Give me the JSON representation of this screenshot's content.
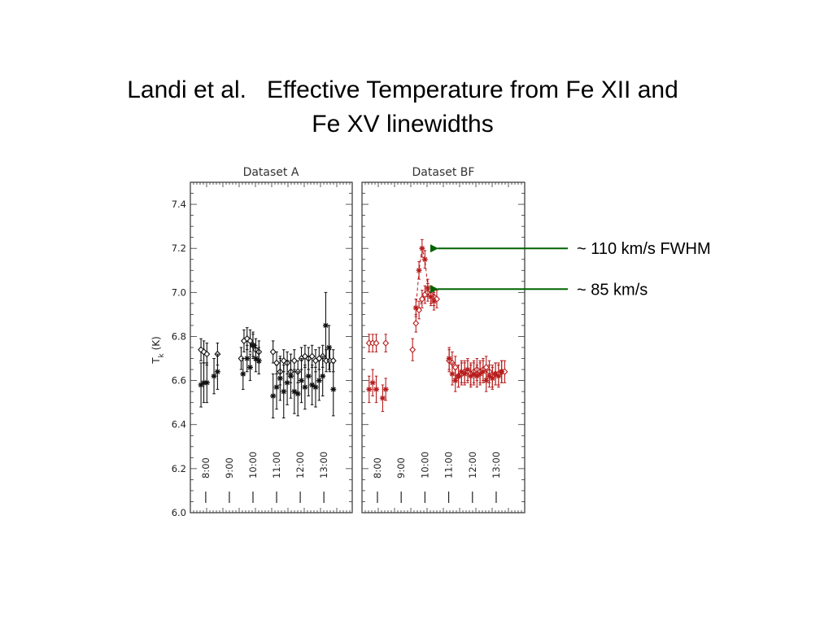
{
  "slide": {
    "title_line1": "Landi et al.   Effective Temperature from Fe XII and",
    "title_line2": "Fe XV linewidths"
  },
  "colors": {
    "series_A": "#111111",
    "series_BF": "#b81c1c",
    "arrow": "#006400",
    "frame": "#333333"
  },
  "chart_data": [
    {
      "type": "scatter",
      "title": "Dataset A",
      "ylabel_main": "T",
      "ylabel_sub": "k",
      "ylabel_unit": " (K)",
      "ylim": [
        6.0,
        7.5
      ],
      "xlim": [
        7.35,
        14.2
      ],
      "yticks": [
        6.0,
        6.2,
        6.4,
        6.6,
        6.8,
        7.0,
        7.2,
        7.4
      ],
      "ytick_labels": [
        "6.0",
        "6.2",
        "6.4",
        "6.6",
        "6.8",
        "7.0",
        "7.2",
        "7.4"
      ],
      "hour_marks": [
        8,
        9,
        10,
        11,
        12,
        13
      ],
      "hour_labels": [
        "8:00",
        "9:00",
        "10:00",
        "11:00",
        "12:00",
        "13:00"
      ],
      "series": [
        {
          "marker": "diamond",
          "points": [
            {
              "x": 7.8,
              "y": 6.74,
              "err": 0.05
            },
            {
              "x": 7.92,
              "y": 6.73,
              "err": 0.05
            },
            {
              "x": 8.05,
              "y": 6.72,
              "err": 0.05
            },
            {
              "x": 8.5,
              "y": 6.72,
              "err": 0.05
            },
            {
              "x": 9.5,
              "y": 6.7,
              "err": 0.05
            },
            {
              "x": 9.62,
              "y": 6.78,
              "err": 0.05
            },
            {
              "x": 9.75,
              "y": 6.79,
              "err": 0.05
            },
            {
              "x": 9.88,
              "y": 6.78,
              "err": 0.05
            },
            {
              "x": 10.0,
              "y": 6.76,
              "err": 0.05
            },
            {
              "x": 10.12,
              "y": 6.74,
              "err": 0.05
            },
            {
              "x": 10.25,
              "y": 6.73,
              "err": 0.05
            },
            {
              "x": 10.85,
              "y": 6.73,
              "err": 0.05
            },
            {
              "x": 11.0,
              "y": 6.68,
              "err": 0.05
            },
            {
              "x": 11.15,
              "y": 6.64,
              "err": 0.06
            },
            {
              "x": 11.3,
              "y": 6.69,
              "err": 0.05
            },
            {
              "x": 11.45,
              "y": 6.68,
              "err": 0.05
            },
            {
              "x": 11.6,
              "y": 6.64,
              "err": 0.05
            },
            {
              "x": 11.75,
              "y": 6.69,
              "err": 0.05
            },
            {
              "x": 11.9,
              "y": 6.64,
              "err": 0.05
            },
            {
              "x": 12.05,
              "y": 6.7,
              "err": 0.05
            },
            {
              "x": 12.2,
              "y": 6.71,
              "err": 0.05
            },
            {
              "x": 12.35,
              "y": 6.7,
              "err": 0.05
            },
            {
              "x": 12.5,
              "y": 6.71,
              "err": 0.05
            },
            {
              "x": 12.65,
              "y": 6.69,
              "err": 0.05
            },
            {
              "x": 12.8,
              "y": 6.7,
              "err": 0.05
            },
            {
              "x": 12.95,
              "y": 6.71,
              "err": 0.05
            },
            {
              "x": 13.1,
              "y": 6.69,
              "err": 0.05
            },
            {
              "x": 13.25,
              "y": 6.69,
              "err": 0.05
            },
            {
              "x": 13.4,
              "y": 6.69,
              "err": 0.05
            }
          ]
        },
        {
          "marker": "asterisk",
          "points": [
            {
              "x": 7.8,
              "y": 6.58,
              "err": 0.1
            },
            {
              "x": 7.92,
              "y": 6.59,
              "err": 0.09
            },
            {
              "x": 8.05,
              "y": 6.59,
              "err": 0.09
            },
            {
              "x": 8.35,
              "y": 6.62,
              "err": 0.08
            },
            {
              "x": 8.5,
              "y": 6.64,
              "err": 0.08
            },
            {
              "x": 9.58,
              "y": 6.63,
              "err": 0.07
            },
            {
              "x": 9.75,
              "y": 6.7,
              "err": 0.06
            },
            {
              "x": 9.88,
              "y": 6.66,
              "err": 0.06
            },
            {
              "x": 10.0,
              "y": 6.76,
              "err": 0.06
            },
            {
              "x": 10.12,
              "y": 6.7,
              "err": 0.06
            },
            {
              "x": 10.25,
              "y": 6.69,
              "err": 0.06
            },
            {
              "x": 10.85,
              "y": 6.53,
              "err": 0.1
            },
            {
              "x": 11.0,
              "y": 6.57,
              "err": 0.1
            },
            {
              "x": 11.15,
              "y": 6.61,
              "err": 0.1
            },
            {
              "x": 11.3,
              "y": 6.55,
              "err": 0.12
            },
            {
              "x": 11.45,
              "y": 6.59,
              "err": 0.1
            },
            {
              "x": 11.6,
              "y": 6.62,
              "err": 0.1
            },
            {
              "x": 11.75,
              "y": 6.55,
              "err": 0.1
            },
            {
              "x": 11.9,
              "y": 6.54,
              "err": 0.1
            },
            {
              "x": 12.05,
              "y": 6.6,
              "err": 0.1
            },
            {
              "x": 12.2,
              "y": 6.57,
              "err": 0.1
            },
            {
              "x": 12.35,
              "y": 6.62,
              "err": 0.09
            },
            {
              "x": 12.5,
              "y": 6.58,
              "err": 0.09
            },
            {
              "x": 12.65,
              "y": 6.57,
              "err": 0.09
            },
            {
              "x": 12.8,
              "y": 6.6,
              "err": 0.09
            },
            {
              "x": 12.95,
              "y": 6.62,
              "err": 0.09
            },
            {
              "x": 13.08,
              "y": 6.85,
              "err": 0.15
            },
            {
              "x": 13.22,
              "y": 6.75,
              "err": 0.1
            },
            {
              "x": 13.4,
              "y": 6.56,
              "err": 0.12
            }
          ]
        }
      ]
    },
    {
      "type": "scatter",
      "title": "Dataset BF",
      "ylim": [
        6.0,
        7.5
      ],
      "xlim": [
        7.35,
        14.2
      ],
      "yticks": [
        6.0,
        6.2,
        6.4,
        6.6,
        6.8,
        7.0,
        7.2,
        7.4
      ],
      "hour_marks": [
        8,
        9,
        10,
        11,
        12,
        13
      ],
      "hour_labels": [
        "8:00",
        "9:00",
        "10:00",
        "11:00",
        "12:00",
        "13:00"
      ],
      "series": [
        {
          "marker": "diamond",
          "connect_dashed": [
            6,
            12
          ],
          "points": [
            {
              "x": 7.65,
              "y": 6.77,
              "err": 0.04
            },
            {
              "x": 7.8,
              "y": 6.77,
              "err": 0.04
            },
            {
              "x": 7.95,
              "y": 6.77,
              "err": 0.04
            },
            {
              "x": 8.35,
              "y": 6.77,
              "err": 0.04
            },
            {
              "x": 9.48,
              "y": 6.74,
              "err": 0.05
            },
            {
              "x": 9.62,
              "y": 6.86,
              "err": 0.04
            },
            {
              "x": 9.75,
              "y": 6.92,
              "err": 0.04
            },
            {
              "x": 9.88,
              "y": 6.97,
              "err": 0.04
            },
            {
              "x": 10.0,
              "y": 6.99,
              "err": 0.04
            },
            {
              "x": 10.12,
              "y": 7.0,
              "err": 0.04
            },
            {
              "x": 10.25,
              "y": 6.99,
              "err": 0.04
            },
            {
              "x": 10.38,
              "y": 6.98,
              "err": 0.04
            },
            {
              "x": 10.5,
              "y": 6.97,
              "err": 0.04
            },
            {
              "x": 11.02,
              "y": 6.69,
              "err": 0.05
            },
            {
              "x": 11.15,
              "y": 6.68,
              "err": 0.05
            },
            {
              "x": 11.28,
              "y": 6.66,
              "err": 0.05
            },
            {
              "x": 11.41,
              "y": 6.62,
              "err": 0.05
            },
            {
              "x": 11.54,
              "y": 6.63,
              "err": 0.05
            },
            {
              "x": 11.67,
              "y": 6.64,
              "err": 0.05
            },
            {
              "x": 11.8,
              "y": 6.64,
              "err": 0.05
            },
            {
              "x": 11.93,
              "y": 6.63,
              "err": 0.05
            },
            {
              "x": 12.06,
              "y": 6.64,
              "err": 0.05
            },
            {
              "x": 12.19,
              "y": 6.65,
              "err": 0.05
            },
            {
              "x": 12.32,
              "y": 6.64,
              "err": 0.05
            },
            {
              "x": 12.45,
              "y": 6.65,
              "err": 0.05
            },
            {
              "x": 12.58,
              "y": 6.66,
              "err": 0.05
            },
            {
              "x": 12.71,
              "y": 6.64,
              "err": 0.05
            },
            {
              "x": 12.84,
              "y": 6.62,
              "err": 0.05
            },
            {
              "x": 12.97,
              "y": 6.63,
              "err": 0.05
            },
            {
              "x": 13.1,
              "y": 6.63,
              "err": 0.05
            },
            {
              "x": 13.23,
              "y": 6.64,
              "err": 0.05
            },
            {
              "x": 13.36,
              "y": 6.64,
              "err": 0.05
            }
          ]
        },
        {
          "marker": "asterisk",
          "connect_dashed": [
            5,
            11
          ],
          "points": [
            {
              "x": 7.65,
              "y": 6.56,
              "err": 0.06
            },
            {
              "x": 7.8,
              "y": 6.59,
              "err": 0.06
            },
            {
              "x": 7.95,
              "y": 6.56,
              "err": 0.06
            },
            {
              "x": 8.22,
              "y": 6.52,
              "err": 0.06
            },
            {
              "x": 8.35,
              "y": 6.56,
              "err": 0.05
            },
            {
              "x": 9.62,
              "y": 6.93,
              "err": 0.04
            },
            {
              "x": 9.75,
              "y": 7.1,
              "err": 0.04
            },
            {
              "x": 9.88,
              "y": 7.2,
              "err": 0.04
            },
            {
              "x": 10.0,
              "y": 7.15,
              "err": 0.04
            },
            {
              "x": 10.12,
              "y": 7.02,
              "err": 0.04
            },
            {
              "x": 10.25,
              "y": 6.98,
              "err": 0.04
            },
            {
              "x": 10.38,
              "y": 6.96,
              "err": 0.04
            },
            {
              "x": 11.02,
              "y": 6.7,
              "err": 0.05
            },
            {
              "x": 11.15,
              "y": 6.63,
              "err": 0.05
            },
            {
              "x": 11.28,
              "y": 6.6,
              "err": 0.05
            },
            {
              "x": 11.41,
              "y": 6.62,
              "err": 0.05
            },
            {
              "x": 11.54,
              "y": 6.64,
              "err": 0.05
            },
            {
              "x": 11.67,
              "y": 6.63,
              "err": 0.05
            },
            {
              "x": 11.8,
              "y": 6.65,
              "err": 0.05
            },
            {
              "x": 11.93,
              "y": 6.62,
              "err": 0.05
            },
            {
              "x": 12.06,
              "y": 6.63,
              "err": 0.05
            },
            {
              "x": 12.19,
              "y": 6.62,
              "err": 0.05
            },
            {
              "x": 12.32,
              "y": 6.63,
              "err": 0.05
            },
            {
              "x": 12.45,
              "y": 6.64,
              "err": 0.05
            },
            {
              "x": 12.58,
              "y": 6.6,
              "err": 0.05
            },
            {
              "x": 12.71,
              "y": 6.62,
              "err": 0.05
            },
            {
              "x": 12.84,
              "y": 6.61,
              "err": 0.05
            },
            {
              "x": 12.97,
              "y": 6.63,
              "err": 0.05
            },
            {
              "x": 13.1,
              "y": 6.62,
              "err": 0.05
            },
            {
              "x": 13.23,
              "y": 6.64,
              "err": 0.05
            }
          ]
        }
      ]
    }
  ],
  "annotations": [
    {
      "label": "~ 110 km/s FWHM",
      "target_y": 7.2
    },
    {
      "label": "~ 85 km/s",
      "target_y": 7.015
    }
  ]
}
